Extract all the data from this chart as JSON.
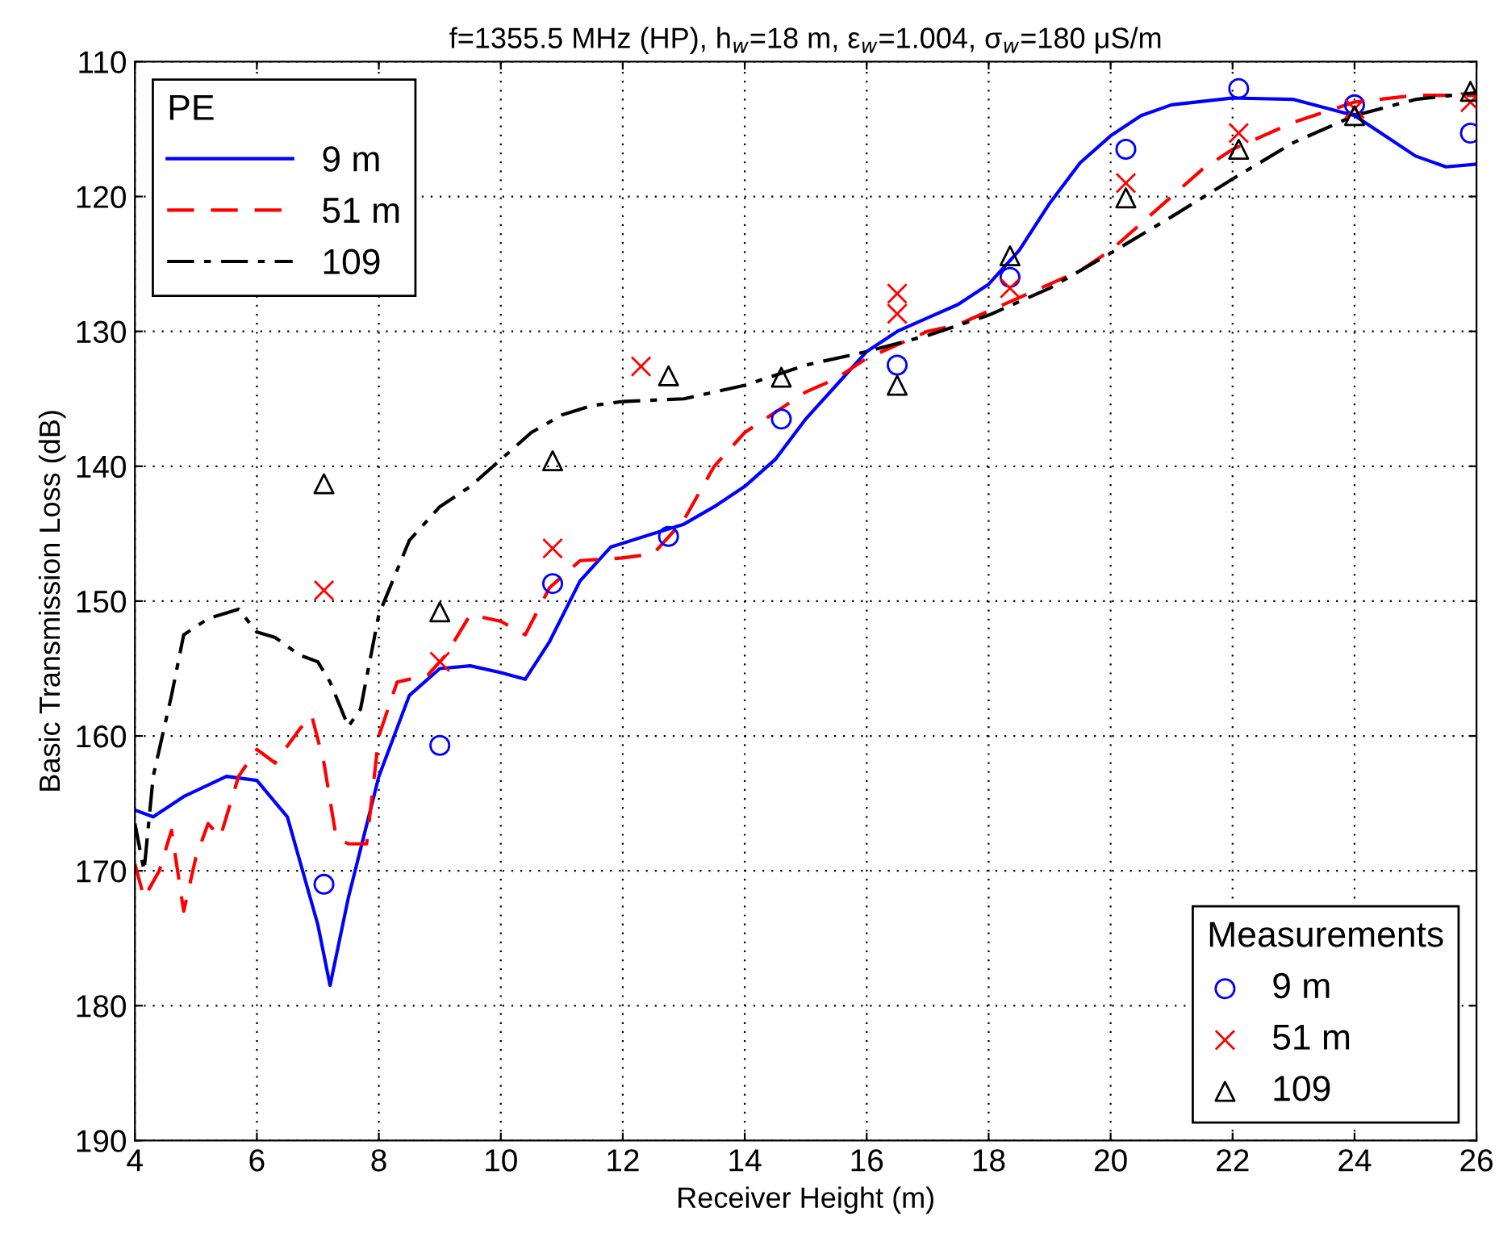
{
  "chart_data": {
    "type": "line",
    "title": "f=1355.5 MHz (HP), h$_{w}$=18 m, ε$_{w}$=1.004, σ$_{w}$=180 μS/m",
    "xlabel": "Receiver Height (m)",
    "ylabel": "Basic Transmission Loss (dB)",
    "xlim": [
      4,
      26
    ],
    "xticks": [
      4,
      6,
      8,
      10,
      12,
      14,
      16,
      18,
      20,
      22,
      24,
      26
    ],
    "ylim": [
      190,
      110
    ],
    "yticks": [
      110,
      120,
      130,
      140,
      150,
      160,
      170,
      180,
      190
    ],
    "grid": true,
    "legend": [
      "top left",
      "bottom right"
    ],
    "legend_title": [
      "PE",
      "Measurements"
    ],
    "series": [
      {
        "name": "9 m",
        "line_style": "solid",
        "color": "#0000ff",
        "x": [
          4.0,
          4.3,
          4.8,
          5.5,
          6.0,
          6.5,
          7.0,
          7.2,
          7.5,
          8.0,
          8.5,
          9.0,
          9.5,
          10.0,
          10.4,
          10.8,
          11.3,
          11.8,
          12.5,
          13.0,
          13.5,
          14.0,
          14.5,
          15.0,
          15.5,
          16.0,
          16.5,
          17.0,
          17.5,
          18.0,
          18.5,
          19.0,
          19.5,
          20.0,
          20.5,
          21.0,
          22.0,
          23.0,
          24.0,
          24.5,
          25.0,
          25.5,
          26.0
        ],
        "values": [
          165.5,
          166,
          164.5,
          163,
          163.3,
          166,
          174,
          178.5,
          172,
          163,
          157,
          155,
          154.8,
          155.3,
          155.8,
          153,
          148.5,
          146,
          145,
          144.3,
          143,
          141.5,
          139.5,
          136.5,
          134,
          131.5,
          130,
          129,
          128,
          126.5,
          124,
          120.5,
          117.5,
          115.5,
          114,
          113.2,
          112.7,
          112.8,
          114,
          115.5,
          117,
          117.8,
          117.6
        ]
      },
      {
        "name": "51 m",
        "line_style": "dashed",
        "color": "#ff0000",
        "x": [
          4.0,
          4.15,
          4.4,
          4.6,
          4.8,
          5.0,
          5.2,
          5.4,
          5.7,
          6.0,
          6.3,
          6.7,
          6.9,
          7.1,
          7.3,
          7.5,
          7.8,
          8.0,
          8.3,
          8.8,
          9.1,
          9.5,
          10.0,
          10.4,
          10.8,
          11.3,
          12.0,
          12.5,
          13.0,
          13.5,
          14.0,
          14.5,
          15.0,
          15.5,
          16.0,
          16.5,
          17.0,
          17.5,
          18.0,
          18.5,
          19.0,
          19.5,
          20.0,
          20.5,
          21.0,
          21.5,
          22.0,
          22.5,
          23.0,
          24.0,
          25.0,
          26.0
        ],
        "values": [
          169.5,
          172,
          170,
          167,
          173,
          169,
          166.5,
          167.5,
          163,
          161,
          162,
          159.5,
          158.5,
          162,
          167.5,
          168,
          168,
          160,
          156,
          155.5,
          154,
          151,
          151.5,
          152.5,
          149,
          147,
          146.8,
          146.5,
          144,
          140,
          137.5,
          136,
          134.5,
          133.5,
          132,
          131,
          130,
          129.5,
          128.5,
          127.5,
          126.5,
          125.5,
          124,
          122,
          120,
          118,
          116.5,
          115.5,
          114.5,
          113,
          112.5,
          112.5
        ]
      },
      {
        "name": "109",
        "line_style": "dashdot",
        "color": "#000000",
        "x": [
          4.0,
          4.15,
          4.3,
          4.6,
          4.8,
          5.2,
          5.7,
          6.0,
          6.3,
          6.7,
          7.0,
          7.2,
          7.5,
          7.7,
          8.0,
          8.5,
          9.0,
          9.5,
          10.0,
          10.5,
          11.0,
          11.5,
          12.0,
          13.0,
          14.0,
          15.0,
          16.0,
          17.0,
          18.0,
          19.0,
          20.0,
          21.0,
          22.0,
          23.0,
          24.0,
          25.0,
          26.0
        ],
        "values": [
          166.5,
          170,
          163,
          157,
          152.5,
          151.3,
          150.6,
          152.3,
          152.7,
          154,
          154.5,
          156,
          159.3,
          158,
          151,
          145.5,
          143,
          141.5,
          139.5,
          137.5,
          136.2,
          135.5,
          135.2,
          135,
          134,
          132.5,
          131.5,
          130.3,
          128.8,
          126.8,
          124.2,
          121.5,
          118.7,
          116,
          114,
          112.8,
          112.3
        ]
      },
      {
        "name": "9 m",
        "type": "scatter",
        "marker": "circle",
        "color": "#0000ff",
        "x": [
          7.1,
          9.0,
          10.85,
          12.75,
          14.6,
          16.5,
          18.35,
          20.25,
          22.1,
          24.0,
          25.9
        ],
        "values": [
          171,
          160.7,
          148.7,
          145.2,
          136.5,
          132.5,
          126,
          116.5,
          112,
          113.2,
          115.3
        ]
      },
      {
        "name": "51 m",
        "type": "scatter",
        "marker": "cross",
        "color": "#ff0000",
        "x": [
          7.1,
          9.0,
          10.85,
          12.3,
          16.5,
          16.5,
          18.35,
          20.25,
          22.1,
          24.0,
          25.9
        ],
        "values": [
          149.2,
          154.5,
          146.1,
          132.6,
          127.2,
          128.7,
          126.8,
          119,
          115.3,
          113.5,
          113
        ]
      },
      {
        "name": "109",
        "type": "scatter",
        "marker": "triangle",
        "color": "#000000",
        "x": [
          7.1,
          9.0,
          10.85,
          12.75,
          14.6,
          16.5,
          18.35,
          20.25,
          22.1,
          24.0,
          25.9
        ],
        "values": [
          141.3,
          150.8,
          139.6,
          133.3,
          133.4,
          134.0,
          124.4,
          120.1,
          116.5,
          114,
          112.2
        ]
      }
    ]
  }
}
